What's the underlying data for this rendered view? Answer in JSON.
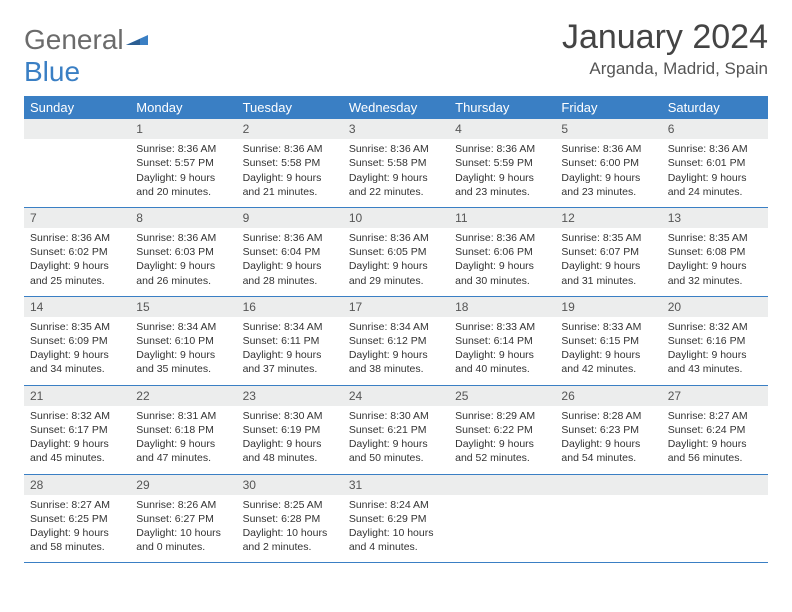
{
  "logo": {
    "line1": "General",
    "line2": "Blue"
  },
  "title": "January 2024",
  "location": "Arganda, Madrid, Spain",
  "colors": {
    "header_bg": "#3a7fc4",
    "header_fg": "#ffffff",
    "daynum_bg": "#eceded",
    "row_border": "#3a7fc4",
    "logo_gray": "#6b6b6b",
    "logo_blue": "#3a7fc4"
  },
  "weekdays": [
    "Sunday",
    "Monday",
    "Tuesday",
    "Wednesday",
    "Thursday",
    "Friday",
    "Saturday"
  ],
  "first_weekday_index": 1,
  "days": [
    {
      "n": 1,
      "sunrise": "8:36 AM",
      "sunset": "5:57 PM",
      "daylight": "9 hours and 20 minutes."
    },
    {
      "n": 2,
      "sunrise": "8:36 AM",
      "sunset": "5:58 PM",
      "daylight": "9 hours and 21 minutes."
    },
    {
      "n": 3,
      "sunrise": "8:36 AM",
      "sunset": "5:58 PM",
      "daylight": "9 hours and 22 minutes."
    },
    {
      "n": 4,
      "sunrise": "8:36 AM",
      "sunset": "5:59 PM",
      "daylight": "9 hours and 23 minutes."
    },
    {
      "n": 5,
      "sunrise": "8:36 AM",
      "sunset": "6:00 PM",
      "daylight": "9 hours and 23 minutes."
    },
    {
      "n": 6,
      "sunrise": "8:36 AM",
      "sunset": "6:01 PM",
      "daylight": "9 hours and 24 minutes."
    },
    {
      "n": 7,
      "sunrise": "8:36 AM",
      "sunset": "6:02 PM",
      "daylight": "9 hours and 25 minutes."
    },
    {
      "n": 8,
      "sunrise": "8:36 AM",
      "sunset": "6:03 PM",
      "daylight": "9 hours and 26 minutes."
    },
    {
      "n": 9,
      "sunrise": "8:36 AM",
      "sunset": "6:04 PM",
      "daylight": "9 hours and 28 minutes."
    },
    {
      "n": 10,
      "sunrise": "8:36 AM",
      "sunset": "6:05 PM",
      "daylight": "9 hours and 29 minutes."
    },
    {
      "n": 11,
      "sunrise": "8:36 AM",
      "sunset": "6:06 PM",
      "daylight": "9 hours and 30 minutes."
    },
    {
      "n": 12,
      "sunrise": "8:35 AM",
      "sunset": "6:07 PM",
      "daylight": "9 hours and 31 minutes."
    },
    {
      "n": 13,
      "sunrise": "8:35 AM",
      "sunset": "6:08 PM",
      "daylight": "9 hours and 32 minutes."
    },
    {
      "n": 14,
      "sunrise": "8:35 AM",
      "sunset": "6:09 PM",
      "daylight": "9 hours and 34 minutes."
    },
    {
      "n": 15,
      "sunrise": "8:34 AM",
      "sunset": "6:10 PM",
      "daylight": "9 hours and 35 minutes."
    },
    {
      "n": 16,
      "sunrise": "8:34 AM",
      "sunset": "6:11 PM",
      "daylight": "9 hours and 37 minutes."
    },
    {
      "n": 17,
      "sunrise": "8:34 AM",
      "sunset": "6:12 PM",
      "daylight": "9 hours and 38 minutes."
    },
    {
      "n": 18,
      "sunrise": "8:33 AM",
      "sunset": "6:14 PM",
      "daylight": "9 hours and 40 minutes."
    },
    {
      "n": 19,
      "sunrise": "8:33 AM",
      "sunset": "6:15 PM",
      "daylight": "9 hours and 42 minutes."
    },
    {
      "n": 20,
      "sunrise": "8:32 AM",
      "sunset": "6:16 PM",
      "daylight": "9 hours and 43 minutes."
    },
    {
      "n": 21,
      "sunrise": "8:32 AM",
      "sunset": "6:17 PM",
      "daylight": "9 hours and 45 minutes."
    },
    {
      "n": 22,
      "sunrise": "8:31 AM",
      "sunset": "6:18 PM",
      "daylight": "9 hours and 47 minutes."
    },
    {
      "n": 23,
      "sunrise": "8:30 AM",
      "sunset": "6:19 PM",
      "daylight": "9 hours and 48 minutes."
    },
    {
      "n": 24,
      "sunrise": "8:30 AM",
      "sunset": "6:21 PM",
      "daylight": "9 hours and 50 minutes."
    },
    {
      "n": 25,
      "sunrise": "8:29 AM",
      "sunset": "6:22 PM",
      "daylight": "9 hours and 52 minutes."
    },
    {
      "n": 26,
      "sunrise": "8:28 AM",
      "sunset": "6:23 PM",
      "daylight": "9 hours and 54 minutes."
    },
    {
      "n": 27,
      "sunrise": "8:27 AM",
      "sunset": "6:24 PM",
      "daylight": "9 hours and 56 minutes."
    },
    {
      "n": 28,
      "sunrise": "8:27 AM",
      "sunset": "6:25 PM",
      "daylight": "9 hours and 58 minutes."
    },
    {
      "n": 29,
      "sunrise": "8:26 AM",
      "sunset": "6:27 PM",
      "daylight": "10 hours and 0 minutes."
    },
    {
      "n": 30,
      "sunrise": "8:25 AM",
      "sunset": "6:28 PM",
      "daylight": "10 hours and 2 minutes."
    },
    {
      "n": 31,
      "sunrise": "8:24 AM",
      "sunset": "6:29 PM",
      "daylight": "10 hours and 4 minutes."
    }
  ],
  "labels": {
    "sunrise": "Sunrise:",
    "sunset": "Sunset:",
    "daylight": "Daylight:"
  }
}
